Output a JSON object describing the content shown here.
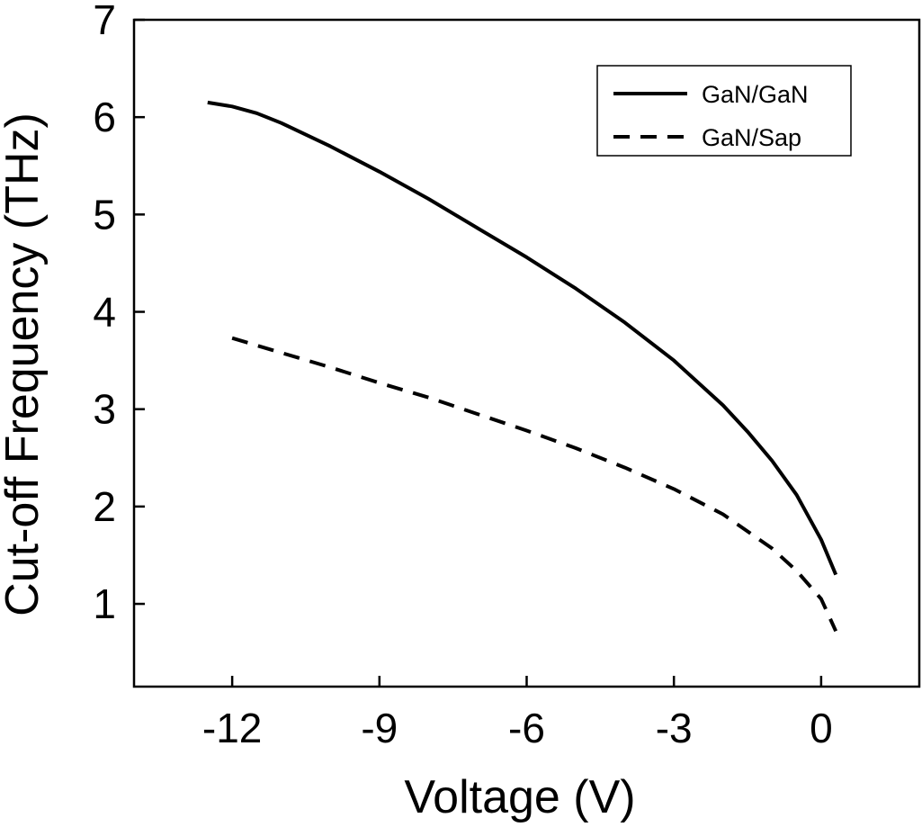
{
  "chart_data": {
    "type": "line",
    "xlabel": "Voltage (V)",
    "ylabel": "Cut-off Frequency (THz)",
    "xlim": [
      -14,
      2
    ],
    "ylim": [
      0.15,
      7
    ],
    "xticks": [
      -12,
      -9,
      -6,
      -3,
      0
    ],
    "yticks": [
      1,
      2,
      3,
      4,
      5,
      6,
      7
    ],
    "grid": false,
    "legend_position": "top-right",
    "series": [
      {
        "name": "GaN/GaN",
        "line_style": "solid",
        "color": "#000000",
        "x": [
          -12.5,
          -12.0,
          -11.5,
          -11.0,
          -10.0,
          -9.0,
          -8.0,
          -7.0,
          -6.0,
          -5.0,
          -4.0,
          -3.0,
          -2.0,
          -1.5,
          -1.0,
          -0.5,
          0.0,
          0.3
        ],
        "y": [
          6.15,
          6.11,
          6.04,
          5.94,
          5.7,
          5.44,
          5.16,
          4.86,
          4.56,
          4.24,
          3.89,
          3.5,
          3.04,
          2.77,
          2.47,
          2.12,
          1.66,
          1.3
        ]
      },
      {
        "name": "GaN/Sap",
        "line_style": "dashed",
        "color": "#000000",
        "x": [
          -12.0,
          -11.0,
          -10.0,
          -9.0,
          -8.0,
          -7.0,
          -6.0,
          -5.0,
          -4.0,
          -3.0,
          -2.0,
          -1.0,
          -0.5,
          0.0,
          0.3
        ],
        "y": [
          3.73,
          3.58,
          3.43,
          3.27,
          3.12,
          2.95,
          2.78,
          2.6,
          2.4,
          2.18,
          1.92,
          1.57,
          1.34,
          1.05,
          0.72
        ]
      }
    ]
  }
}
